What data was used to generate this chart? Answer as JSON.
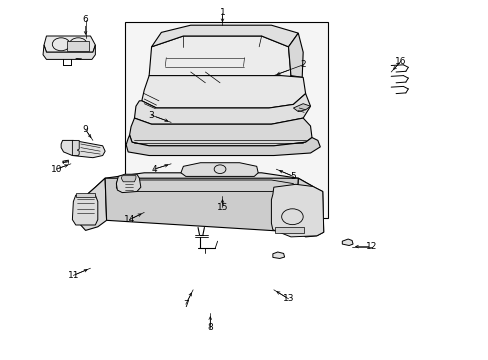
{
  "bg": "#ffffff",
  "lc": "#000000",
  "fig_w": 4.89,
  "fig_h": 3.6,
  "dpi": 100,
  "leaders": [
    [
      1,
      0.455,
      0.965,
      0.455,
      0.93
    ],
    [
      2,
      0.62,
      0.82,
      0.56,
      0.79
    ],
    [
      3,
      0.31,
      0.68,
      0.35,
      0.66
    ],
    [
      4,
      0.315,
      0.53,
      0.35,
      0.545
    ],
    [
      5,
      0.6,
      0.51,
      0.565,
      0.53
    ],
    [
      6,
      0.175,
      0.945,
      0.175,
      0.895
    ],
    [
      7,
      0.38,
      0.155,
      0.395,
      0.195
    ],
    [
      8,
      0.43,
      0.09,
      0.43,
      0.13
    ],
    [
      9,
      0.175,
      0.64,
      0.19,
      0.61
    ],
    [
      10,
      0.115,
      0.53,
      0.145,
      0.545
    ],
    [
      11,
      0.15,
      0.235,
      0.185,
      0.255
    ],
    [
      12,
      0.76,
      0.315,
      0.72,
      0.315
    ],
    [
      13,
      0.59,
      0.17,
      0.56,
      0.195
    ],
    [
      14,
      0.265,
      0.39,
      0.295,
      0.41
    ],
    [
      15,
      0.455,
      0.425,
      0.455,
      0.455
    ],
    [
      16,
      0.82,
      0.83,
      0.8,
      0.8
    ]
  ]
}
